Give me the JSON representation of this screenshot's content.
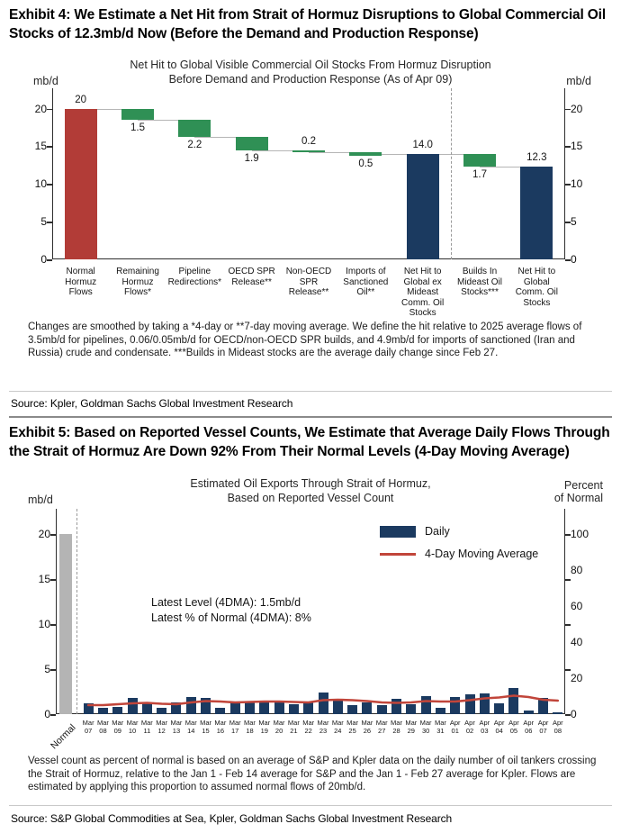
{
  "exhibit4": {
    "title": "Exhibit 4: We Estimate a Net Hit from Strait of Hormuz Disruptions to Global Commercial Oil Stocks of 12.3mb/d Now (Before the Demand and Production Response)",
    "footnote": "Changes are smoothed by taking a *4-day or **7-day moving average. We define the hit relative to 2025 average flows of 3.5mb/d for pipelines, 0.06/0.05mb/d for OECD/non-OECD SPR builds, and 4.9mb/d for imports of sanctioned (Iran and Russia) crude and condensate. ***Builds in Mideast stocks are the average daily change since Feb 27.",
    "source": "Source: Kpler, Goldman Sachs Global Investment Research"
  },
  "exhibit5": {
    "title": "Exhibit 5: Based on Reported Vessel Counts, We Estimate that Average Daily Flows Through the Strait of Hormuz Are Down 92% From Their Normal Levels (4-Day Moving Average)",
    "footnote": "Vessel count as percent of normal is based on an average of S&P and Kpler data on the daily number of oil tankers crossing the Strait of Hormuz, relative to the Jan 1 - Feb 14 average for S&P and the Jan 1 - Feb 27 average for Kpler. Flows are estimated by applying this proportion to assumed normal flows of 20mb/d.",
    "source": "Source: S&P Global Commodities at Sea, Kpler, Goldman Sachs Global Investment Research"
  },
  "chart_data": [
    {
      "type": "waterfall",
      "title_lines": [
        "Net Hit to Global Visible Commercial Oil Stocks From Hormuz Disruption",
        "Before Demand and Production Response (As of Apr 09)"
      ],
      "unit_left": "mb/d",
      "unit_right": "mb/d",
      "ylim": [
        0,
        22.7
      ],
      "yticks": [
        0,
        5,
        10,
        15,
        20
      ],
      "grid": false,
      "colors": {
        "start": "#b23c37",
        "decrease": "#2f9055",
        "total": "#1b3a60"
      },
      "separator_before_index": 7,
      "bars": [
        {
          "label": "Normal Hormuz Flows",
          "display": "20",
          "value": 20,
          "from": 0,
          "to": 20,
          "role": "start",
          "value_pos": "above"
        },
        {
          "label": "Remaining Hormuz Flows*",
          "display": "1.5",
          "value": 1.5,
          "from": 20,
          "to": 18.5,
          "role": "decrease",
          "value_pos": "below"
        },
        {
          "label": "Pipeline Redirections*",
          "display": "2.2",
          "value": 2.2,
          "from": 18.5,
          "to": 16.3,
          "role": "decrease",
          "value_pos": "below"
        },
        {
          "label": "OECD SPR Release**",
          "display": "1.9",
          "value": 1.9,
          "from": 16.3,
          "to": 14.4,
          "role": "decrease",
          "value_pos": "below"
        },
        {
          "label": "Non-OECD SPR Release**",
          "display": "0.2",
          "value": 0.2,
          "from": 14.4,
          "to": 14.2,
          "role": "decrease",
          "value_pos": "above"
        },
        {
          "label": "Imports of Sanctioned Oil**",
          "display": "0.5",
          "value": 0.5,
          "from": 14.2,
          "to": 13.7,
          "role": "decrease",
          "value_pos": "below"
        },
        {
          "label": "Net Hit to Global ex Mideast Comm. Oil Stocks",
          "display": "14.0",
          "value": 14.0,
          "from": 0,
          "to": 14.0,
          "role": "total",
          "value_pos": "above"
        },
        {
          "label": "Builds In Mideast Oil Stocks***",
          "display": "1.7",
          "value": 1.7,
          "from": 14.0,
          "to": 12.3,
          "role": "decrease",
          "value_pos": "below"
        },
        {
          "label": "Net Hit to Global Comm. Oil Stocks",
          "display": "12.3",
          "value": 12.3,
          "from": 0,
          "to": 12.3,
          "role": "total",
          "value_pos": "above"
        }
      ]
    },
    {
      "type": "bar+line",
      "title_lines": [
        "Estimated Oil Exports Through Strait of Hormuz,",
        "Based on Reported Vessel Count"
      ],
      "unit_left": "mb/d",
      "unit_right": [
        "Percent",
        "of Normal"
      ],
      "ylim_left": [
        0,
        22.8
      ],
      "yticks_left": [
        0,
        5,
        10,
        15,
        20
      ],
      "ylim_right": [
        0,
        114
      ],
      "yticks_right": [
        0,
        20,
        40,
        60,
        80,
        100
      ],
      "legend_position": "top-right-inside",
      "legend": [
        {
          "label": "Daily",
          "type": "bar",
          "color": "#1b3a60"
        },
        {
          "label": "4-Day Moving Average",
          "type": "line",
          "color": "#c1453a"
        }
      ],
      "annotation_lines": [
        "Latest Level (4DMA): 1.5mb/d",
        "Latest % of Normal (4DMA): 8%"
      ],
      "normal_bar": {
        "label": "Normal",
        "value": 20,
        "color": "#b4b4b4"
      },
      "categories": [
        [
          "Mar",
          "07"
        ],
        [
          "Mar",
          "08"
        ],
        [
          "Mar",
          "09"
        ],
        [
          "Mar",
          "10"
        ],
        [
          "Mar",
          "11"
        ],
        [
          "Mar",
          "12"
        ],
        [
          "Mar",
          "13"
        ],
        [
          "Mar",
          "14"
        ],
        [
          "Mar",
          "15"
        ],
        [
          "Mar",
          "16"
        ],
        [
          "Mar",
          "17"
        ],
        [
          "Mar",
          "18"
        ],
        [
          "Mar",
          "19"
        ],
        [
          "Mar",
          "20"
        ],
        [
          "Mar",
          "21"
        ],
        [
          "Mar",
          "22"
        ],
        [
          "Mar",
          "23"
        ],
        [
          "Mar",
          "24"
        ],
        [
          "Mar",
          "25"
        ],
        [
          "Mar",
          "26"
        ],
        [
          "Mar",
          "27"
        ],
        [
          "Mar",
          "28"
        ],
        [
          "Mar",
          "29"
        ],
        [
          "Mar",
          "30"
        ],
        [
          "Mar",
          "31"
        ],
        [
          "Apr",
          "01"
        ],
        [
          "Apr",
          "02"
        ],
        [
          "Apr",
          "03"
        ],
        [
          "Apr",
          "04"
        ],
        [
          "Apr",
          "05"
        ],
        [
          "Apr",
          "06"
        ],
        [
          "Apr",
          "07"
        ],
        [
          "Apr",
          "08"
        ]
      ],
      "series": [
        {
          "name": "Daily",
          "type": "bar",
          "color": "#1b3a60",
          "values": [
            1.2,
            0.7,
            0.8,
            1.8,
            1.2,
            0.7,
            1.3,
            1.9,
            1.8,
            0.7,
            1.4,
            1.4,
            1.4,
            1.5,
            1.1,
            1.4,
            2.4,
            1.5,
            1.0,
            1.3,
            1.0,
            1.7,
            1.1,
            2.0,
            0.7,
            1.9,
            2.2,
            2.3,
            1.2,
            2.9,
            0.4,
            1.8,
            0.2
          ]
        },
        {
          "name": "4-Day Moving Average",
          "type": "line",
          "color": "#c1453a",
          "values": [
            1.0,
            1.0,
            1.1,
            1.2,
            1.25,
            1.15,
            1.1,
            1.3,
            1.45,
            1.4,
            1.3,
            1.35,
            1.4,
            1.4,
            1.35,
            1.3,
            1.55,
            1.6,
            1.55,
            1.45,
            1.3,
            1.25,
            1.3,
            1.45,
            1.4,
            1.4,
            1.55,
            1.75,
            1.85,
            2.05,
            1.9,
            1.6,
            1.5
          ]
        }
      ]
    }
  ]
}
